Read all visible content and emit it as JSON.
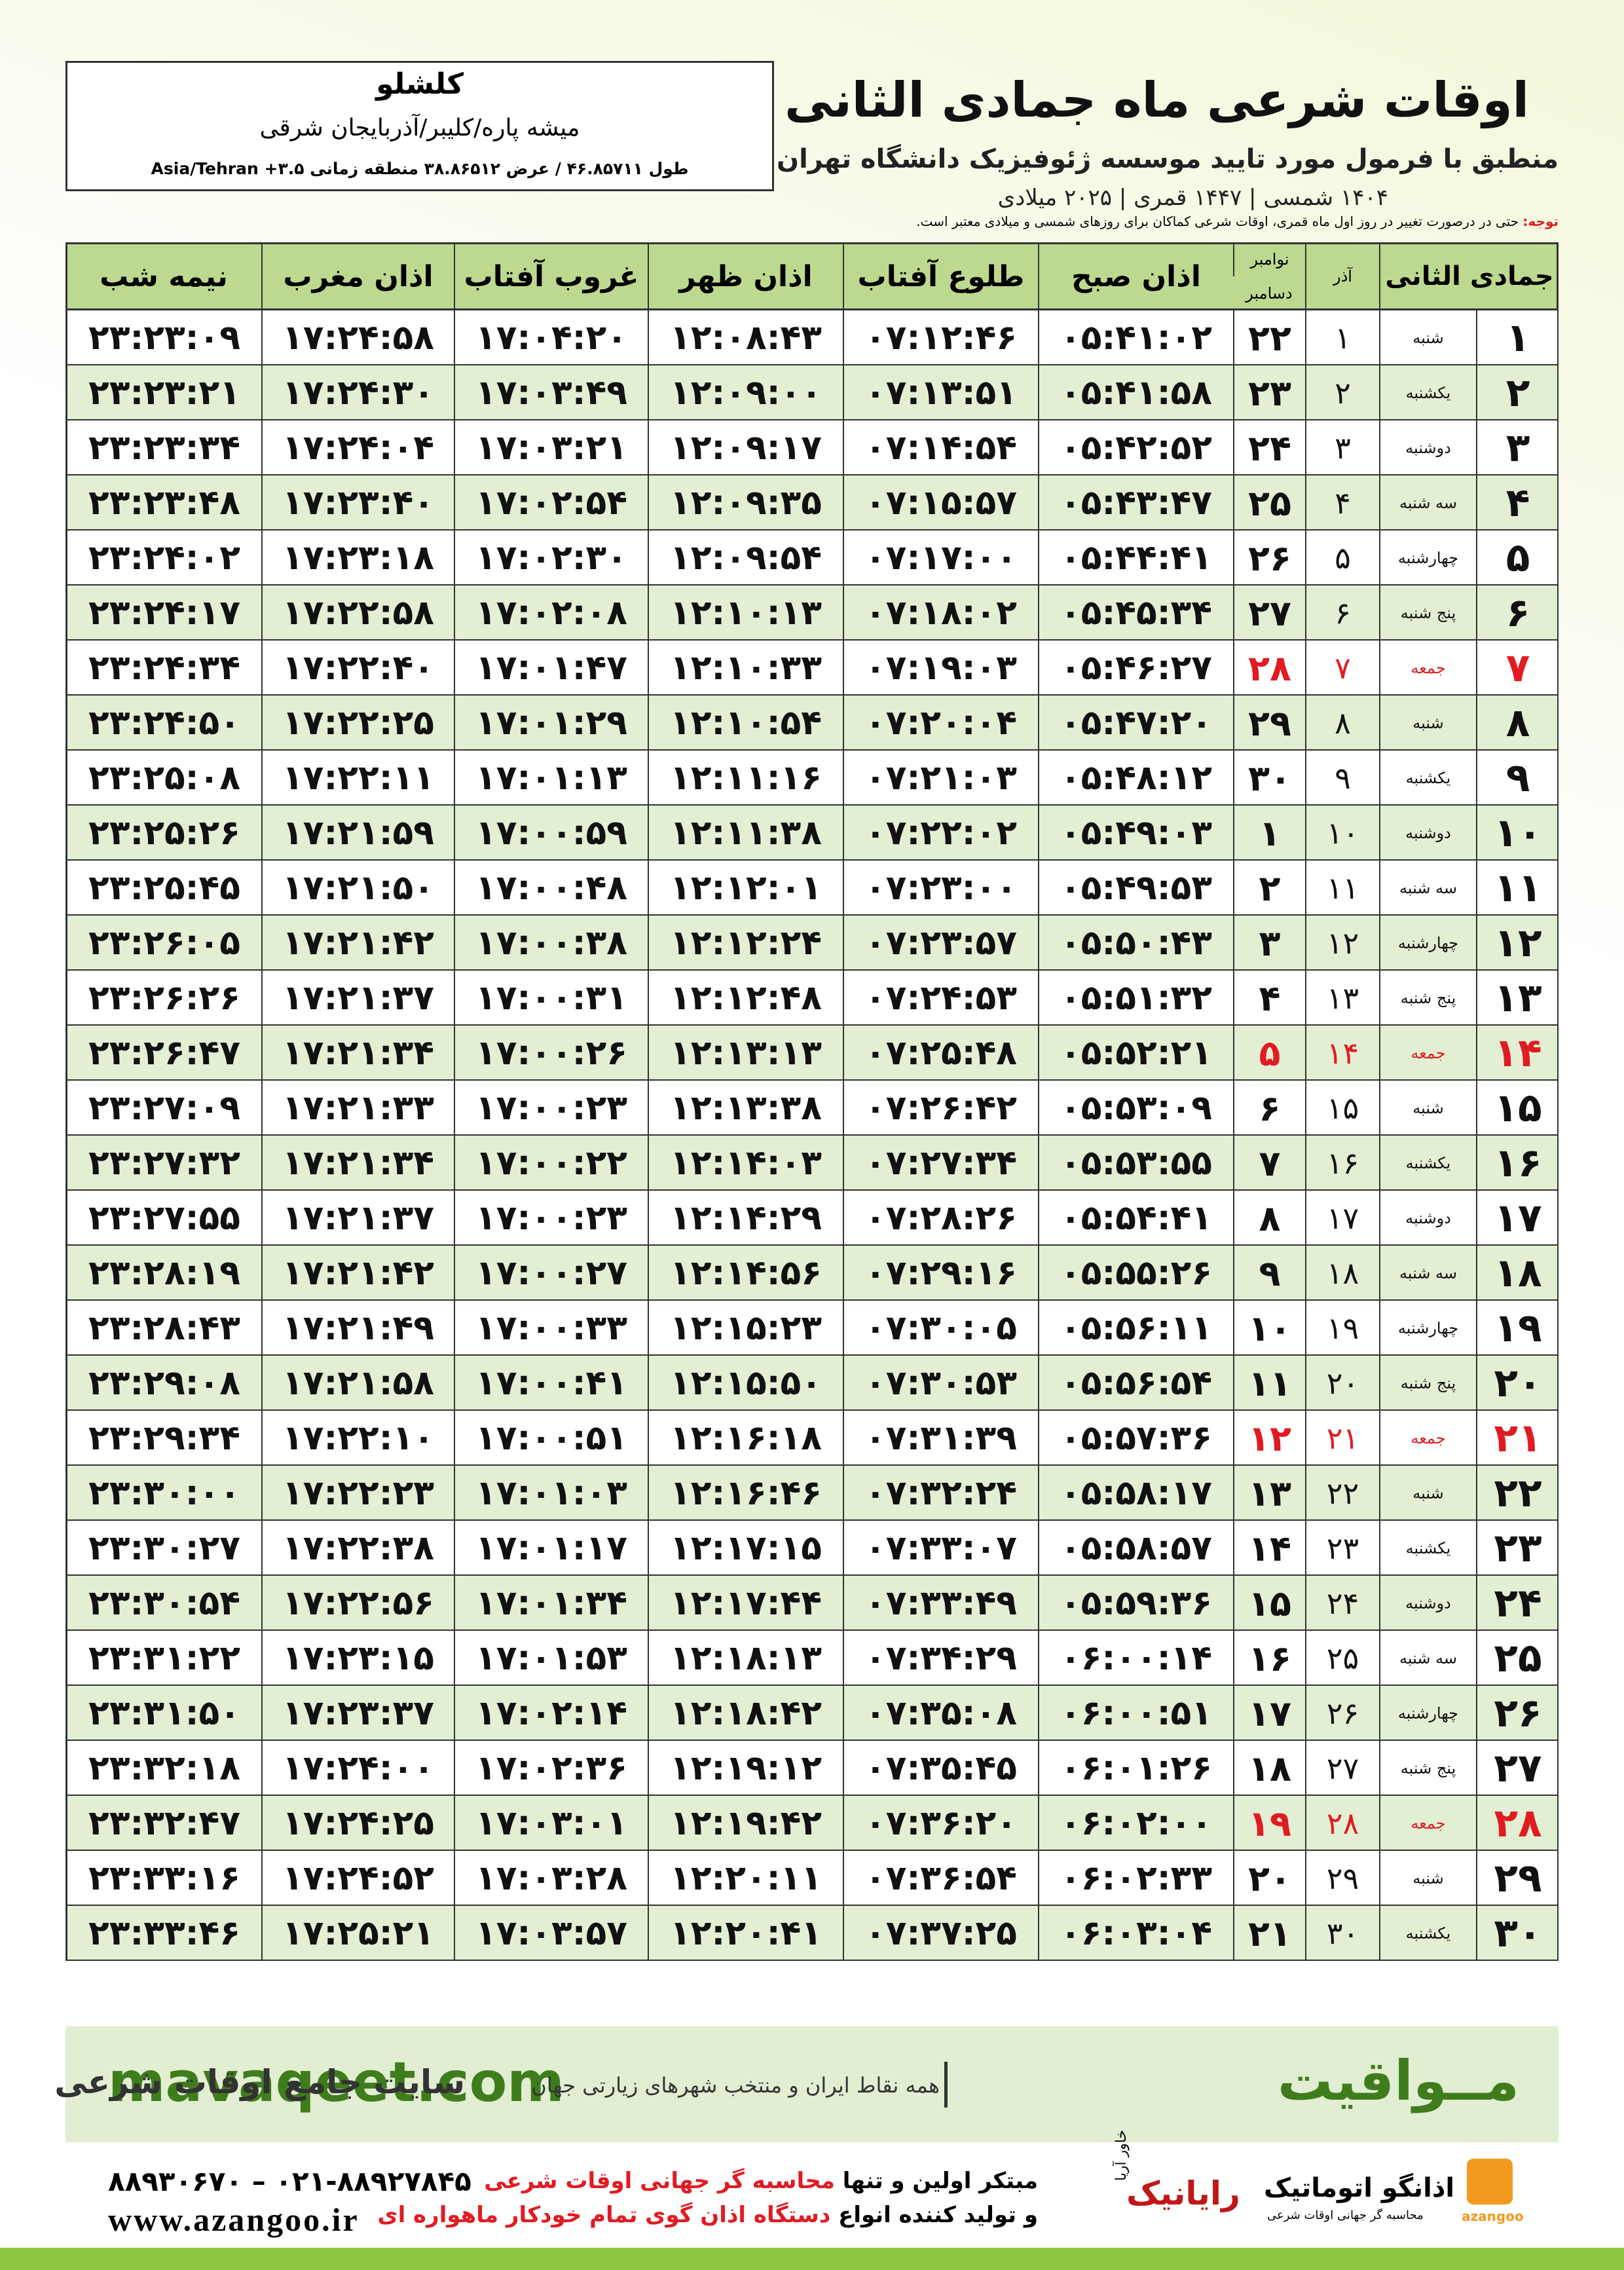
{
  "header": {
    "city": "کلشلو",
    "region": "میشه پاره/کلیبر/آذربایجان شرقی",
    "coords": "طول ۴۶.۸۵۷۱۱ / عرض ۳۸.۸۶۵۱۲ منطقه زمانی ۳.۵+ Asia/Tehran",
    "title": "اوقات شرعی ماه جمادی الثانی",
    "subtitle": "منطبق با فرمول مورد تایید موسسه ژئوفیزیک دانشگاه تهران",
    "years": "۱۴۰۴ شمسی | ۱۴۴۷ قمری | ۲۰۲۵ میلادی",
    "note_label": "توجه:",
    "note": "حتی در درصورت تغییر در روز اول ماه قمری، اوقات شرعی کماکان برای روزهای شمسی و میلادی معتبر است."
  },
  "table": {
    "columns": [
      [
        "جمادی الثانی"
      ],
      [
        "آذر"
      ],
      [
        "نوامبر",
        "دسامبر"
      ],
      [
        "اذان صبح"
      ],
      [
        "طلوع آفتاب"
      ],
      [
        "اذان ظهر"
      ],
      [
        "غروب آفتاب"
      ],
      [
        "اذان مغرب"
      ],
      [
        "نیمه شب"
      ]
    ],
    "rows": [
      {
        "cells": [
          "۱",
          "شنبه",
          "۱",
          "۲۲",
          "۰۵:۴۱:۰۲",
          "۰۷:۱۲:۴۶",
          "۱۲:۰۸:۴۳",
          "۱۷:۰۴:۲۰",
          "۱۷:۲۴:۵۸",
          "۲۳:۲۳:۰۹"
        ]
      },
      {
        "cells": [
          "۲",
          "یکشنبه",
          "۲",
          "۲۳",
          "۰۵:۴۱:۵۸",
          "۰۷:۱۳:۵۱",
          "۱۲:۰۹:۰۰",
          "۱۷:۰۳:۴۹",
          "۱۷:۲۴:۳۰",
          "۲۳:۲۳:۲۱"
        ]
      },
      {
        "cells": [
          "۳",
          "دوشنبه",
          "۳",
          "۲۴",
          "۰۵:۴۲:۵۲",
          "۰۷:۱۴:۵۴",
          "۱۲:۰۹:۱۷",
          "۱۷:۰۳:۲۱",
          "۱۷:۲۴:۰۴",
          "۲۳:۲۳:۳۴"
        ]
      },
      {
        "cells": [
          "۴",
          "سه شنبه",
          "۴",
          "۲۵",
          "۰۵:۴۳:۴۷",
          "۰۷:۱۵:۵۷",
          "۱۲:۰۹:۳۵",
          "۱۷:۰۲:۵۴",
          "۱۷:۲۳:۴۰",
          "۲۳:۲۳:۴۸"
        ]
      },
      {
        "cells": [
          "۵",
          "چهارشنبه",
          "۵",
          "۲۶",
          "۰۵:۴۴:۴۱",
          "۰۷:۱۷:۰۰",
          "۱۲:۰۹:۵۴",
          "۱۷:۰۲:۳۰",
          "۱۷:۲۳:۱۸",
          "۲۳:۲۴:۰۲"
        ]
      },
      {
        "cells": [
          "۶",
          "پنج شنبه",
          "۶",
          "۲۷",
          "۰۵:۴۵:۳۴",
          "۰۷:۱۸:۰۲",
          "۱۲:۱۰:۱۳",
          "۱۷:۰۲:۰۸",
          "۱۷:۲۲:۵۸",
          "۲۳:۲۴:۱۷"
        ]
      },
      {
        "cells": [
          "۷",
          "جمعه",
          "۷",
          "۲۸",
          "۰۵:۴۶:۲۷",
          "۰۷:۱۹:۰۳",
          "۱۲:۱۰:۳۳",
          "۱۷:۰۱:۴۷",
          "۱۷:۲۲:۴۰",
          "۲۳:۲۴:۳۴"
        ],
        "color": "#e11b22"
      },
      {
        "cells": [
          "۸",
          "شنبه",
          "۸",
          "۲۹",
          "۰۵:۴۷:۲۰",
          "۰۷:۲۰:۰۴",
          "۱۲:۱۰:۵۴",
          "۱۷:۰۱:۲۹",
          "۱۷:۲۲:۲۵",
          "۲۳:۲۴:۵۰"
        ]
      },
      {
        "cells": [
          "۹",
          "یکشنبه",
          "۹",
          "۳۰",
          "۰۵:۴۸:۱۲",
          "۰۷:۲۱:۰۳",
          "۱۲:۱۱:۱۶",
          "۱۷:۰۱:۱۳",
          "۱۷:۲۲:۱۱",
          "۲۳:۲۵:۰۸"
        ]
      },
      {
        "cells": [
          "۱۰",
          "دوشنبه",
          "۱۰",
          "۱",
          "۰۵:۴۹:۰۳",
          "۰۷:۲۲:۰۲",
          "۱۲:۱۱:۳۸",
          "۱۷:۰۰:۵۹",
          "۱۷:۲۱:۵۹",
          "۲۳:۲۵:۲۶"
        ]
      },
      {
        "cells": [
          "۱۱",
          "سه شنبه",
          "۱۱",
          "۲",
          "۰۵:۴۹:۵۳",
          "۰۷:۲۳:۰۰",
          "۱۲:۱۲:۰۱",
          "۱۷:۰۰:۴۸",
          "۱۷:۲۱:۵۰",
          "۲۳:۲۵:۴۵"
        ]
      },
      {
        "cells": [
          "۱۲",
          "چهارشنبه",
          "۱۲",
          "۳",
          "۰۵:۵۰:۴۳",
          "۰۷:۲۳:۵۷",
          "۱۲:۱۲:۲۴",
          "۱۷:۰۰:۳۸",
          "۱۷:۲۱:۴۲",
          "۲۳:۲۶:۰۵"
        ]
      },
      {
        "cells": [
          "۱۳",
          "پنج شنبه",
          "۱۳",
          "۴",
          "۰۵:۵۱:۳۲",
          "۰۷:۲۴:۵۳",
          "۱۲:۱۲:۴۸",
          "۱۷:۰۰:۳۱",
          "۱۷:۲۱:۳۷",
          "۲۳:۲۶:۲۶"
        ]
      },
      {
        "cells": [
          "۱۴",
          "جمعه",
          "۱۴",
          "۵",
          "۰۵:۵۲:۲۱",
          "۰۷:۲۵:۴۸",
          "۱۲:۱۳:۱۳",
          "۱۷:۰۰:۲۶",
          "۱۷:۲۱:۳۴",
          "۲۳:۲۶:۴۷"
        ],
        "color": "#e11b22"
      },
      {
        "cells": [
          "۱۵",
          "شنبه",
          "۱۵",
          "۶",
          "۰۵:۵۳:۰۹",
          "۰۷:۲۶:۴۲",
          "۱۲:۱۳:۳۸",
          "۱۷:۰۰:۲۳",
          "۱۷:۲۱:۳۳",
          "۲۳:۲۷:۰۹"
        ]
      },
      {
        "cells": [
          "۱۶",
          "یکشنبه",
          "۱۶",
          "۷",
          "۰۵:۵۳:۵۵",
          "۰۷:۲۷:۳۴",
          "۱۲:۱۴:۰۳",
          "۱۷:۰۰:۲۲",
          "۱۷:۲۱:۳۴",
          "۲۳:۲۷:۳۲"
        ]
      },
      {
        "cells": [
          "۱۷",
          "دوشنبه",
          "۱۷",
          "۸",
          "۰۵:۵۴:۴۱",
          "۰۷:۲۸:۲۶",
          "۱۲:۱۴:۲۹",
          "۱۷:۰۰:۲۳",
          "۱۷:۲۱:۳۷",
          "۲۳:۲۷:۵۵"
        ]
      },
      {
        "cells": [
          "۱۸",
          "سه شنبه",
          "۱۸",
          "۹",
          "۰۵:۵۵:۲۶",
          "۰۷:۲۹:۱۶",
          "۱۲:۱۴:۵۶",
          "۱۷:۰۰:۲۷",
          "۱۷:۲۱:۴۲",
          "۲۳:۲۸:۱۹"
        ]
      },
      {
        "cells": [
          "۱۹",
          "چهارشنبه",
          "۱۹",
          "۱۰",
          "۰۵:۵۶:۱۱",
          "۰۷:۳۰:۰۵",
          "۱۲:۱۵:۲۳",
          "۱۷:۰۰:۳۳",
          "۱۷:۲۱:۴۹",
          "۲۳:۲۸:۴۳"
        ]
      },
      {
        "cells": [
          "۲۰",
          "پنج شنبه",
          "۲۰",
          "۱۱",
          "۰۵:۵۶:۵۴",
          "۰۷:۳۰:۵۳",
          "۱۲:۱۵:۵۰",
          "۱۷:۰۰:۴۱",
          "۱۷:۲۱:۵۸",
          "۲۳:۲۹:۰۸"
        ]
      },
      {
        "cells": [
          "۲۱",
          "جمعه",
          "۲۱",
          "۱۲",
          "۰۵:۵۷:۳۶",
          "۰۷:۳۱:۳۹",
          "۱۲:۱۶:۱۸",
          "۱۷:۰۰:۵۱",
          "۱۷:۲۲:۱۰",
          "۲۳:۲۹:۳۴"
        ],
        "color": "#e11b22"
      },
      {
        "cells": [
          "۲۲",
          "شنبه",
          "۲۲",
          "۱۳",
          "۰۵:۵۸:۱۷",
          "۰۷:۳۲:۲۴",
          "۱۲:۱۶:۴۶",
          "۱۷:۰۱:۰۳",
          "۱۷:۲۲:۲۳",
          "۲۳:۳۰:۰۰"
        ]
      },
      {
        "cells": [
          "۲۳",
          "یکشنبه",
          "۲۳",
          "۱۴",
          "۰۵:۵۸:۵۷",
          "۰۷:۳۳:۰۷",
          "۱۲:۱۷:۱۵",
          "۱۷:۰۱:۱۷",
          "۱۷:۲۲:۳۸",
          "۲۳:۳۰:۲۷"
        ]
      },
      {
        "cells": [
          "۲۴",
          "دوشنبه",
          "۲۴",
          "۱۵",
          "۰۵:۵۹:۳۶",
          "۰۷:۳۳:۴۹",
          "۱۲:۱۷:۴۴",
          "۱۷:۰۱:۳۴",
          "۱۷:۲۲:۵۶",
          "۲۳:۳۰:۵۴"
        ]
      },
      {
        "cells": [
          "۲۵",
          "سه شنبه",
          "۲۵",
          "۱۶",
          "۰۶:۰۰:۱۴",
          "۰۷:۳۴:۲۹",
          "۱۲:۱۸:۱۳",
          "۱۷:۰۱:۵۳",
          "۱۷:۲۳:۱۵",
          "۲۳:۳۱:۲۲"
        ]
      },
      {
        "cells": [
          "۲۶",
          "چهارشنبه",
          "۲۶",
          "۱۷",
          "۰۶:۰۰:۵۱",
          "۰۷:۳۵:۰۸",
          "۱۲:۱۸:۴۲",
          "۱۷:۰۲:۱۴",
          "۱۷:۲۳:۳۷",
          "۲۳:۳۱:۵۰"
        ]
      },
      {
        "cells": [
          "۲۷",
          "پنج شنبه",
          "۲۷",
          "۱۸",
          "۰۶:۰۱:۲۶",
          "۰۷:۳۵:۴۵",
          "۱۲:۱۹:۱۲",
          "۱۷:۰۲:۳۶",
          "۱۷:۲۴:۰۰",
          "۲۳:۳۲:۱۸"
        ]
      },
      {
        "cells": [
          "۲۸",
          "جمعه",
          "۲۸",
          "۱۹",
          "۰۶:۰۲:۰۰",
          "۰۷:۳۶:۲۰",
          "۱۲:۱۹:۴۲",
          "۱۷:۰۳:۰۱",
          "۱۷:۲۴:۲۵",
          "۲۳:۳۲:۴۷"
        ],
        "color": "#e11b22"
      },
      {
        "cells": [
          "۲۹",
          "شنبه",
          "۲۹",
          "۲۰",
          "۰۶:۰۲:۳۳",
          "۰۷:۳۶:۵۴",
          "۱۲:۲۰:۱۱",
          "۱۷:۰۳:۲۸",
          "۱۷:۲۴:۵۲",
          "۲۳:۳۳:۱۶"
        ]
      },
      {
        "cells": [
          "۳۰",
          "یکشنبه",
          "۳۰",
          "۲۱",
          "۰۶:۰۳:۰۴",
          "۰۷:۳۷:۲۵",
          "۱۲:۲۰:۴۱",
          "۱۷:۰۳:۵۷",
          "۱۷:۲۵:۲۱",
          "۲۳:۳۳:۴۶"
        ]
      }
    ]
  },
  "footer": {
    "site": "mavaqeet.com",
    "tagline": "همه نقاط ایران و منتخب شهرهای زیارتی جهان",
    "slogan": "سایت جامع اوقات شرعی",
    "brand": "مــواقیت",
    "phone": "۰۲۱-۸۸۹۲۷۸۴۵ – ۸۸۹۳۰۶۷۰",
    "web": "www.azangoo.ir",
    "line1_a": "مبتکر اولین و تنها",
    "line1_b": "محاسبه گر جهانی اوقات شرعی",
    "line2_a": "و تولید کننده انواع",
    "line2_b": "دستگاه اذان گوی تمام خودکار ماهواره ای",
    "logo_raianik": "رایانیک",
    "logo_khavar": "خاور آریا",
    "logo_azangoo": "اذانگو اتوماتیک",
    "logo_azangoo_sub": "محاسبه گر جهانی اوقات شرعی",
    "logo_latin": "azangoo"
  }
}
